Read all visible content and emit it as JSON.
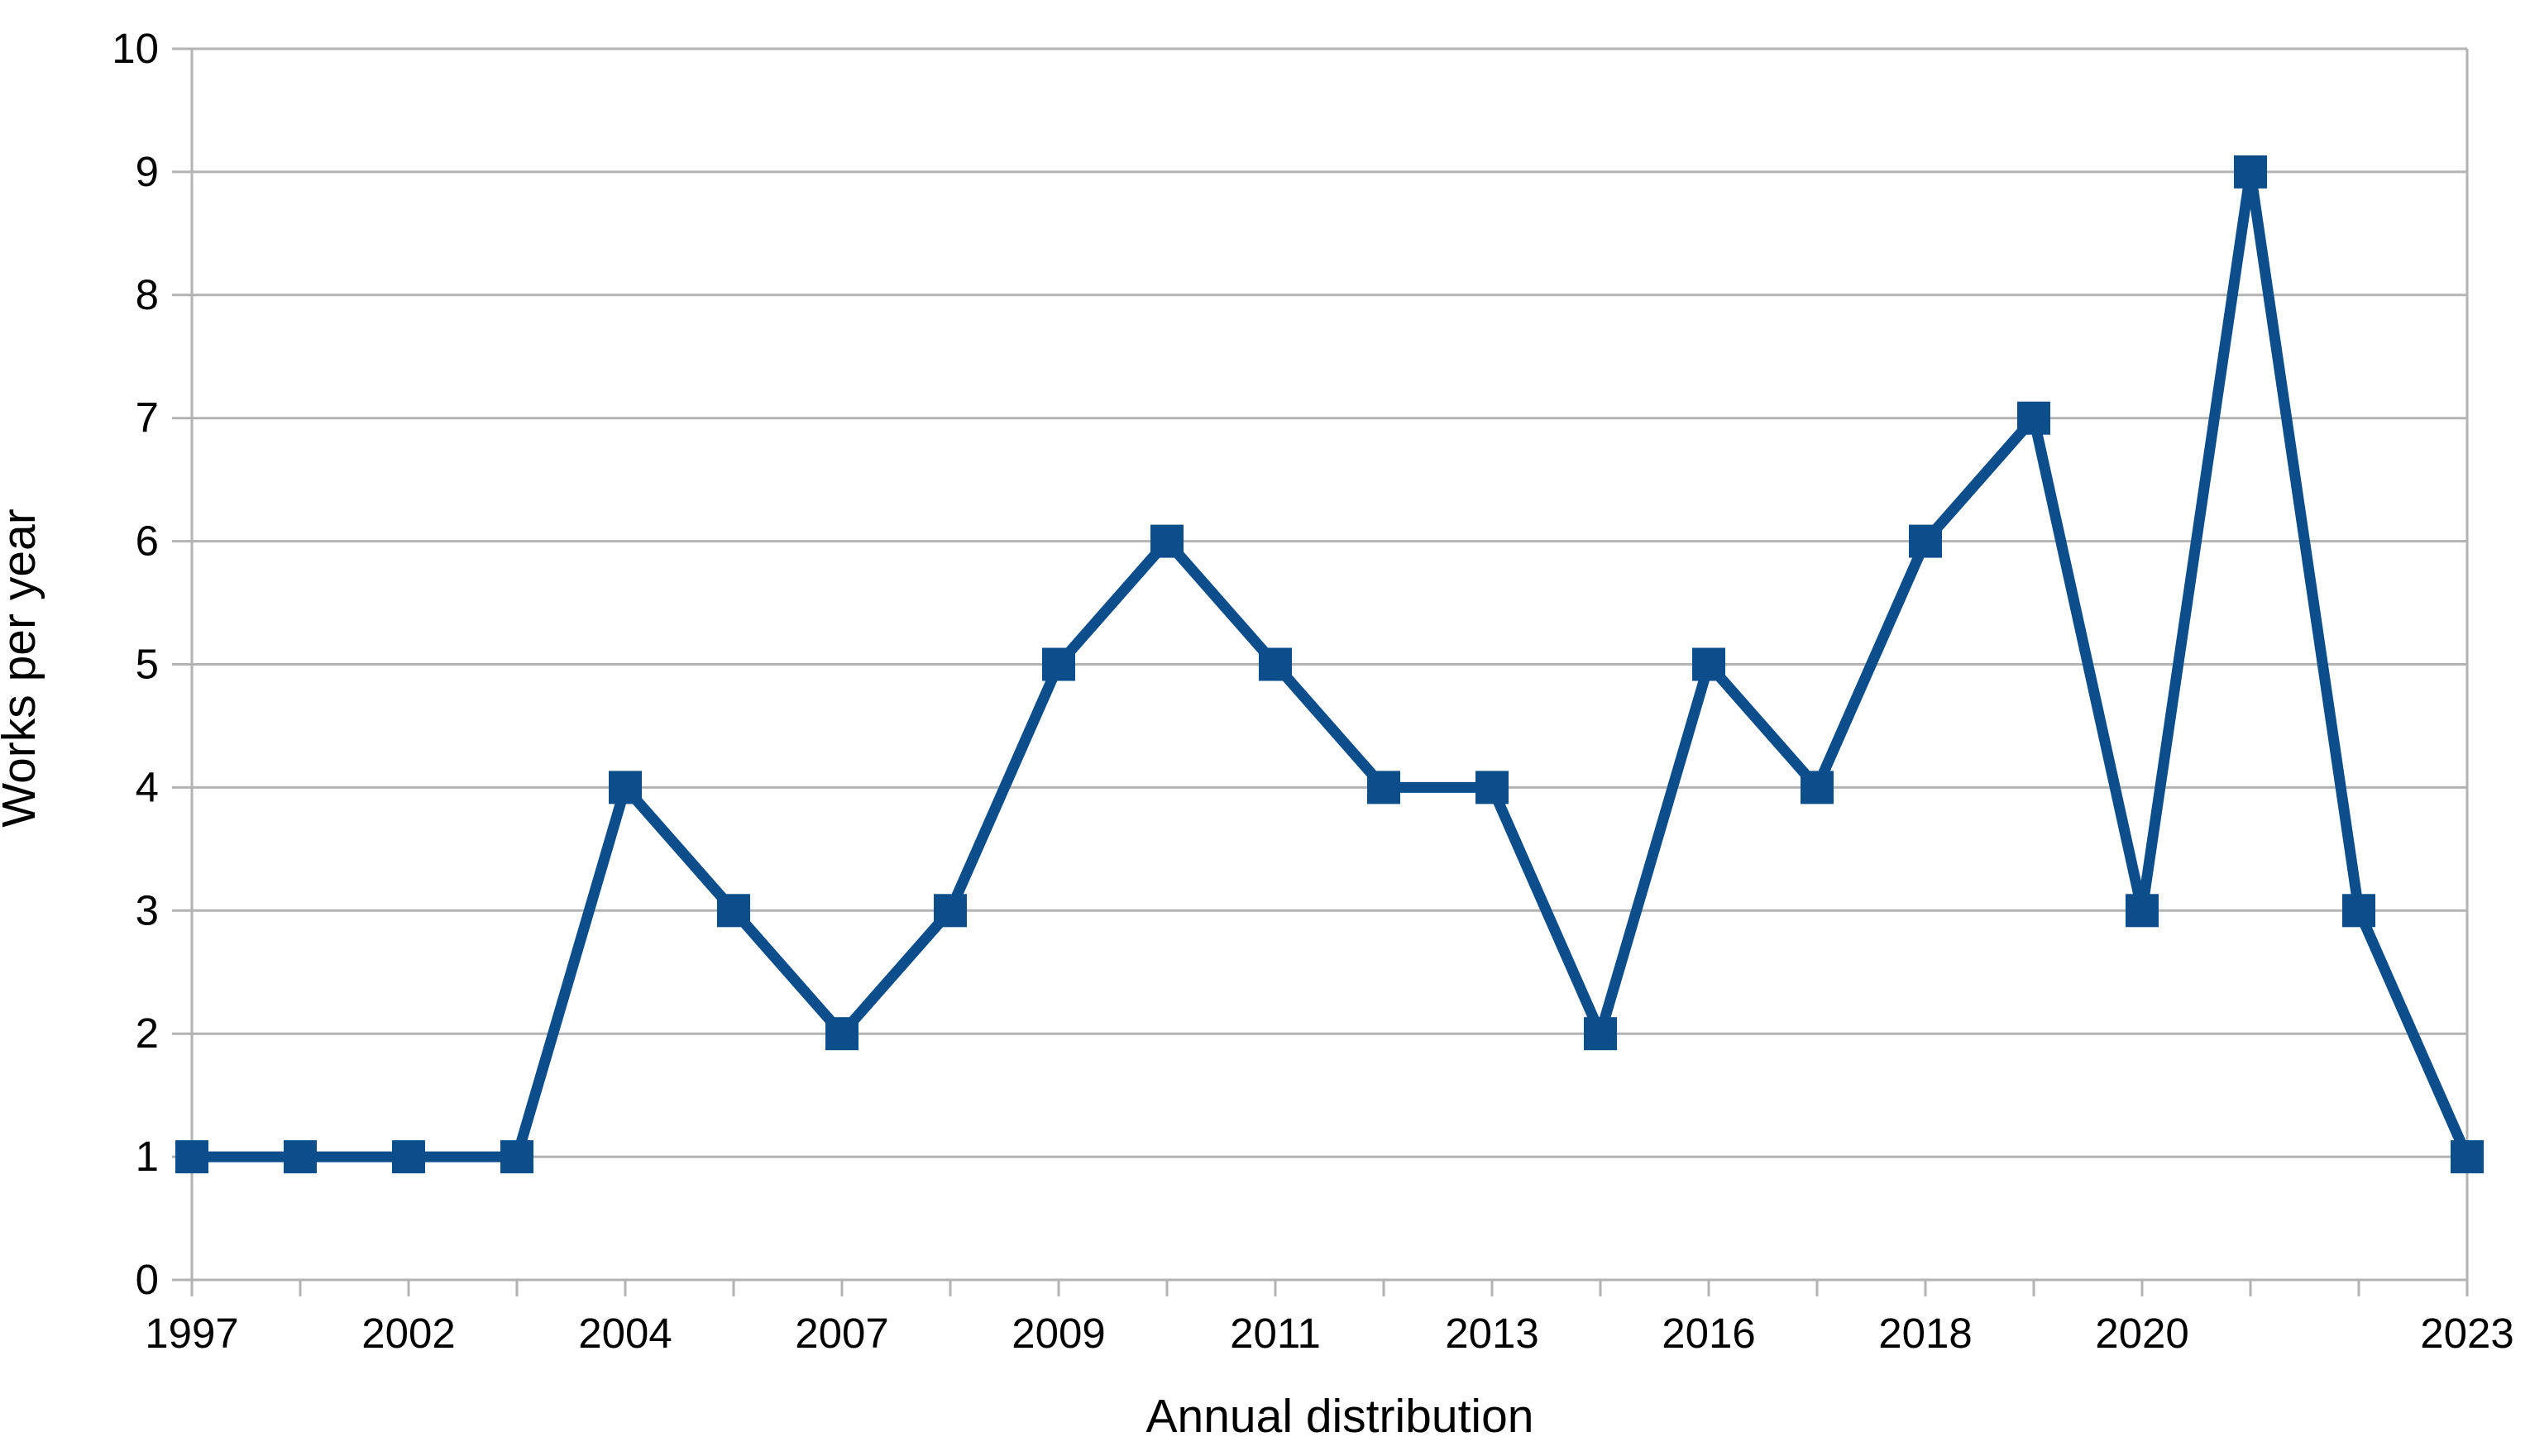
{
  "chart_data": {
    "type": "line",
    "title": "",
    "xlabel": "Annual distribution",
    "ylabel": "Works per year",
    "n_points": 22,
    "values": [
      1,
      1,
      1,
      1,
      4,
      3,
      2,
      3,
      5,
      6,
      5,
      4,
      4,
      2,
      5,
      4,
      6,
      7,
      3,
      9,
      3,
      1
    ],
    "x_tick_labels": [
      {
        "label": "1997",
        "point_index": 0
      },
      {
        "label": "2002",
        "point_index": 2
      },
      {
        "label": "2004",
        "point_index": 4
      },
      {
        "label": "2007",
        "point_index": 6
      },
      {
        "label": "2009",
        "point_index": 8
      },
      {
        "label": "2011",
        "point_index": 10
      },
      {
        "label": "2013",
        "point_index": 12
      },
      {
        "label": "2016",
        "point_index": 14
      },
      {
        "label": "2018",
        "point_index": 16
      },
      {
        "label": "2020",
        "point_index": 18
      },
      {
        "label": "2023",
        "point_index": 21
      }
    ],
    "y_ticks": [
      0,
      1,
      2,
      3,
      4,
      5,
      6,
      7,
      8,
      9,
      10
    ],
    "ylim": [
      0,
      10
    ],
    "grid": "horizontal",
    "legend": "none",
    "marker": "square",
    "colors": {
      "series": "#0b4e8b",
      "grid": "#b3b3b3",
      "axis": "#b3b3b3",
      "text": "#000000",
      "background": "#ffffff"
    }
  }
}
